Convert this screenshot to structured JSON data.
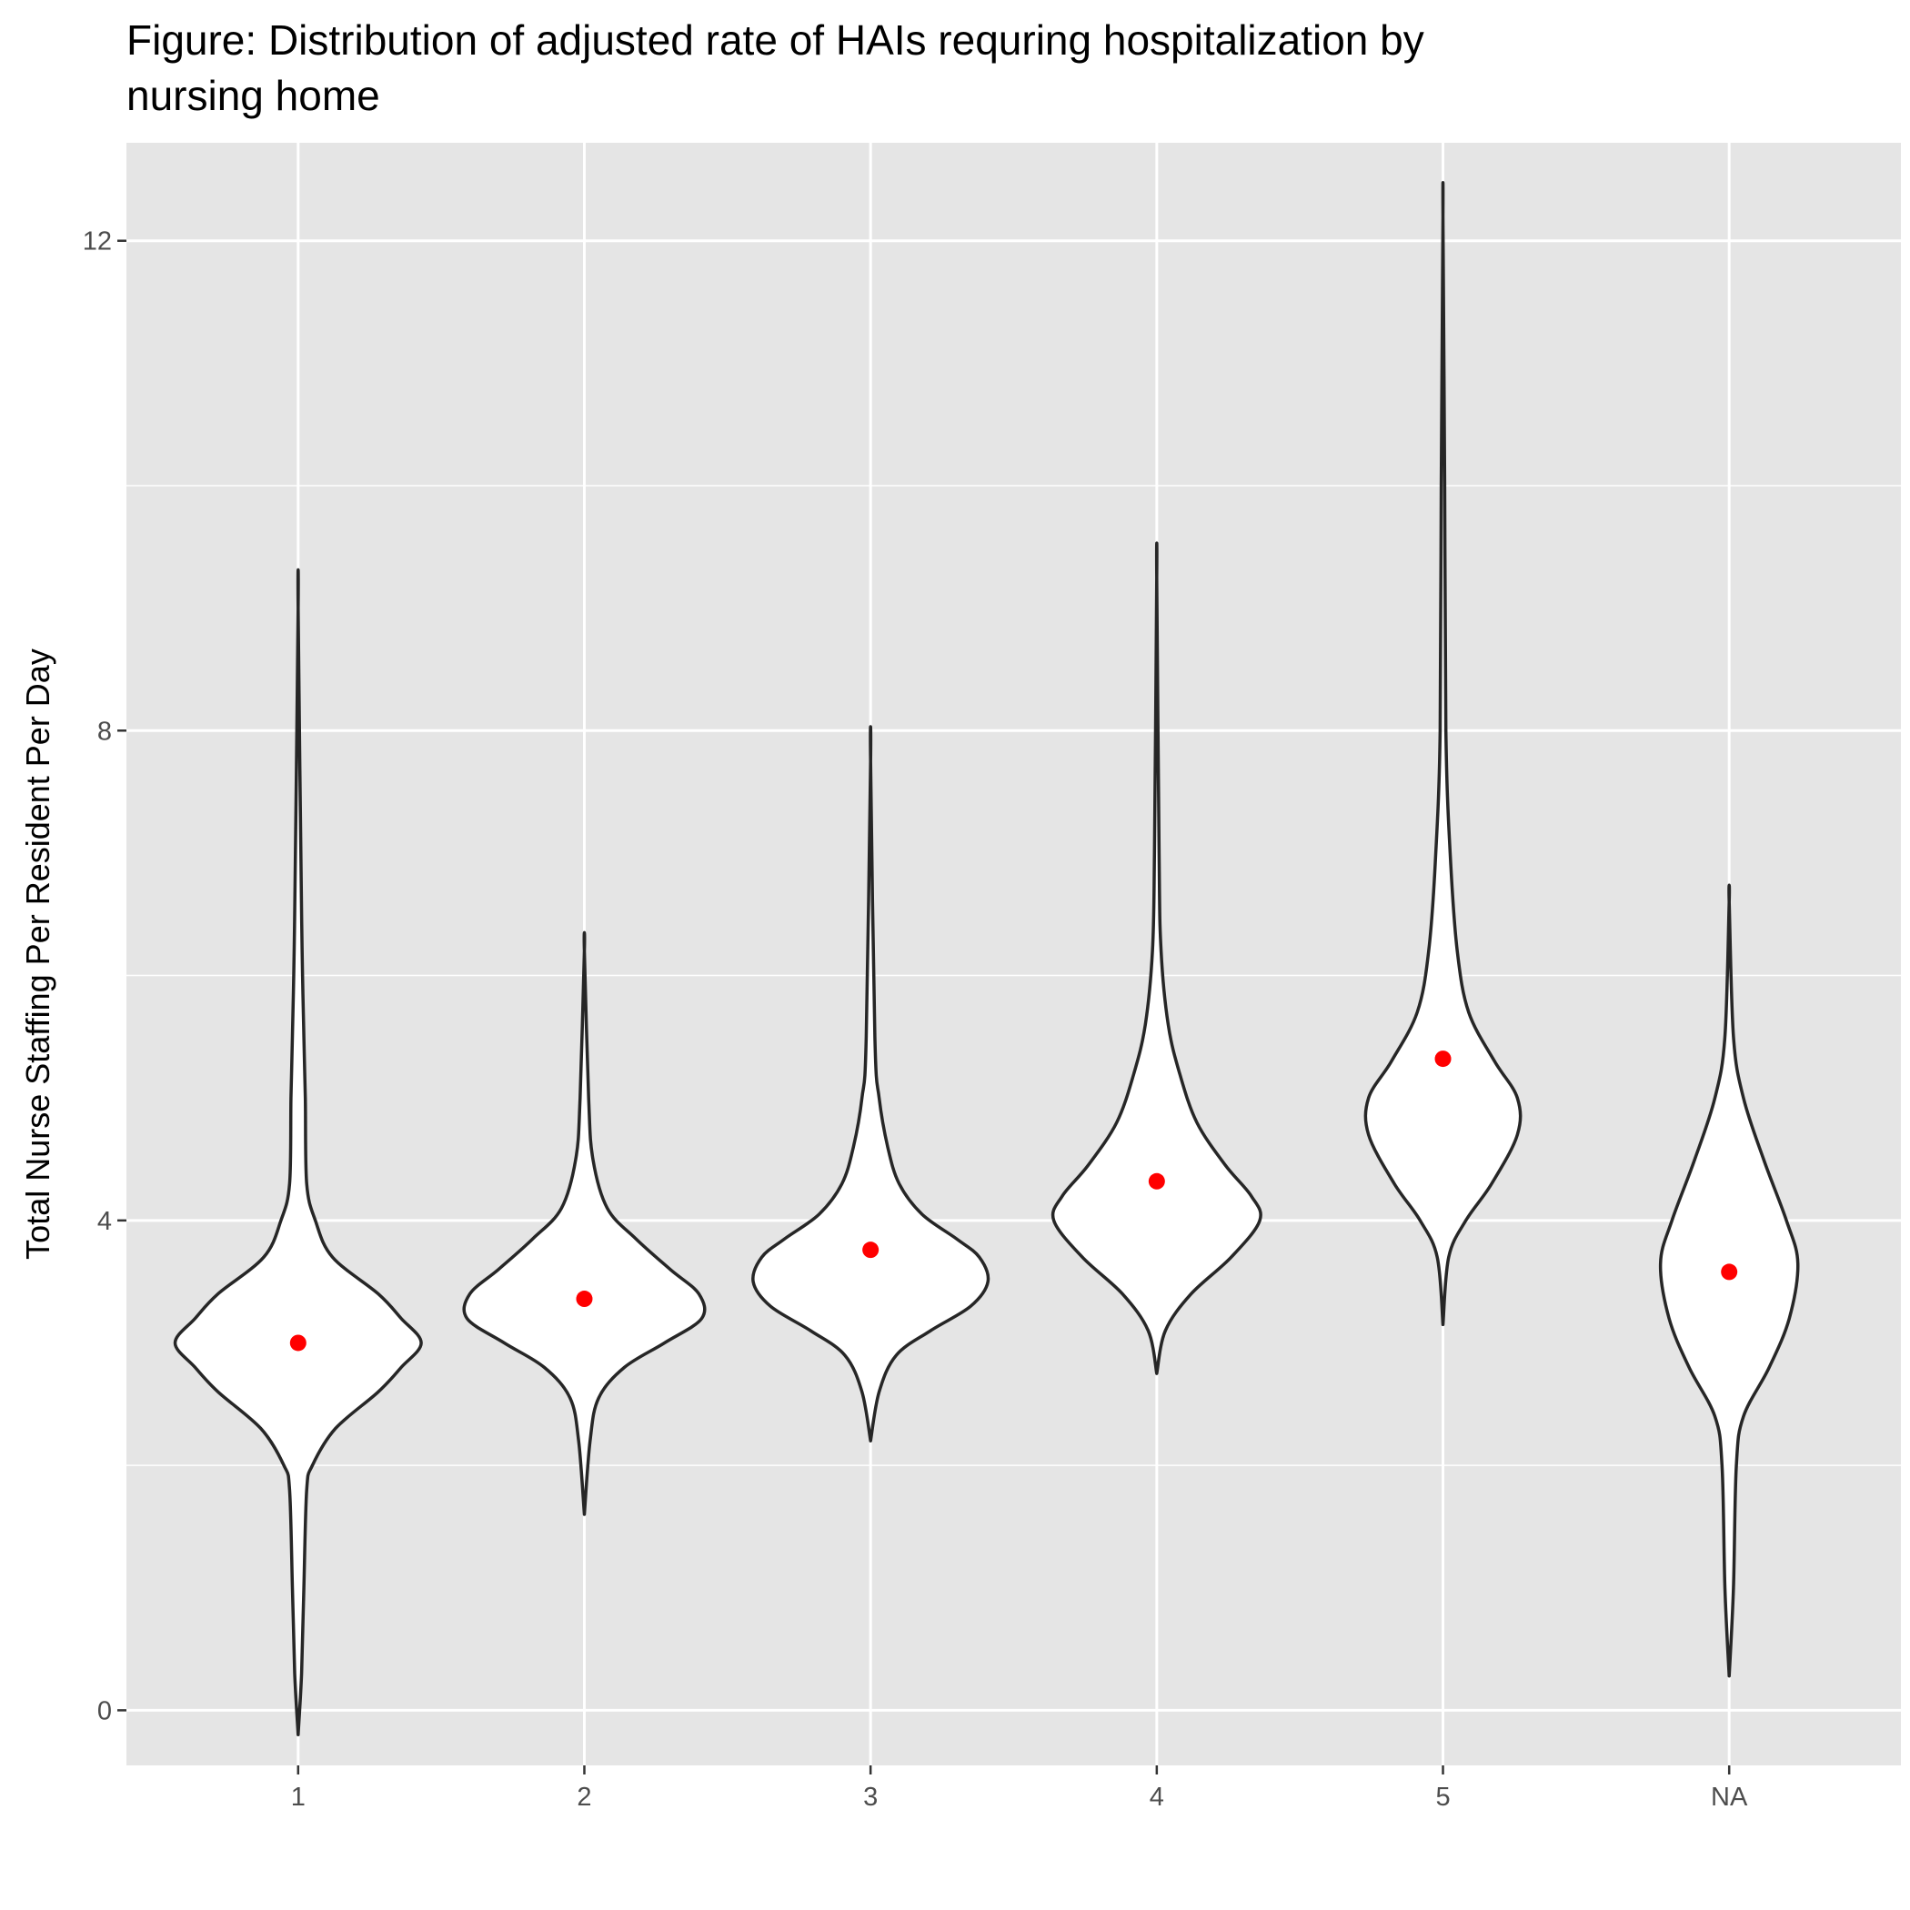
{
  "chart_data": {
    "type": "violin",
    "title_lines": [
      "Figure: Distribution of adjusted rate of HAIs requring hospitalization by",
      "nursing home"
    ],
    "xlabel": "",
    "ylabel": "Total Nurse Staffing Per Resident Per Day",
    "ylim": [
      -0.45,
      12.8
    ],
    "y_ticks": [
      0,
      4,
      8,
      12
    ],
    "y_minor_ticks": [
      2,
      6,
      10
    ],
    "grid": true,
    "categories": [
      "1",
      "2",
      "3",
      "4",
      "5",
      "NA"
    ],
    "mean_color": "#ff0000",
    "panel_color": "#e5e5e5",
    "violins": [
      {
        "category": "1",
        "min": -0.2,
        "max": 9.0,
        "mean": 3.0,
        "profile": [
          [
            -0.2,
            0.0
          ],
          [
            0.3,
            0.012
          ],
          [
            1.0,
            0.02
          ],
          [
            1.8,
            0.03
          ],
          [
            2.0,
            0.05
          ],
          [
            2.3,
            0.13
          ],
          [
            2.6,
            0.28
          ],
          [
            2.8,
            0.36
          ],
          [
            3.0,
            0.43
          ],
          [
            3.2,
            0.36
          ],
          [
            3.4,
            0.28
          ],
          [
            3.7,
            0.12
          ],
          [
            4.0,
            0.06
          ],
          [
            4.3,
            0.03
          ],
          [
            5.0,
            0.025
          ],
          [
            5.5,
            0.02
          ],
          [
            6.5,
            0.012
          ],
          [
            9.0,
            0.0
          ]
        ]
      },
      {
        "category": "2",
        "min": 1.6,
        "max": 6.2,
        "mean": 3.36,
        "profile": [
          [
            1.6,
            0.0
          ],
          [
            2.2,
            0.02
          ],
          [
            2.55,
            0.05
          ],
          [
            2.8,
            0.14
          ],
          [
            3.0,
            0.28
          ],
          [
            3.2,
            0.41
          ],
          [
            3.4,
            0.4
          ],
          [
            3.6,
            0.3
          ],
          [
            3.85,
            0.18
          ],
          [
            4.1,
            0.08
          ],
          [
            4.5,
            0.03
          ],
          [
            5.0,
            0.015
          ],
          [
            6.2,
            0.0
          ]
        ]
      },
      {
        "category": "3",
        "min": 2.2,
        "max": 7.75,
        "mean": 3.76,
        "profile": [
          [
            2.2,
            0.0
          ],
          [
            2.6,
            0.03
          ],
          [
            2.9,
            0.09
          ],
          [
            3.1,
            0.21
          ],
          [
            3.3,
            0.35
          ],
          [
            3.5,
            0.41
          ],
          [
            3.7,
            0.38
          ],
          [
            3.85,
            0.3
          ],
          [
            4.05,
            0.18
          ],
          [
            4.3,
            0.1
          ],
          [
            4.6,
            0.06
          ],
          [
            5.0,
            0.03
          ],
          [
            5.5,
            0.015
          ],
          [
            7.75,
            0.0
          ]
        ]
      },
      {
        "category": "4",
        "min": 2.75,
        "max": 9.25,
        "mean": 4.32,
        "profile": [
          [
            2.75,
            0.0
          ],
          [
            3.1,
            0.03
          ],
          [
            3.4,
            0.12
          ],
          [
            3.7,
            0.26
          ],
          [
            4.0,
            0.36
          ],
          [
            4.2,
            0.33
          ],
          [
            4.45,
            0.24
          ],
          [
            4.8,
            0.14
          ],
          [
            5.2,
            0.08
          ],
          [
            5.6,
            0.04
          ],
          [
            6.2,
            0.015
          ],
          [
            7.0,
            0.008
          ],
          [
            9.25,
            0.0
          ]
        ]
      },
      {
        "category": "5",
        "min": 3.15,
        "max": 12.2,
        "mean": 5.32,
        "profile": [
          [
            3.15,
            0.0
          ],
          [
            3.7,
            0.02
          ],
          [
            4.0,
            0.08
          ],
          [
            4.3,
            0.17
          ],
          [
            4.7,
            0.26
          ],
          [
            5.0,
            0.26
          ],
          [
            5.3,
            0.18
          ],
          [
            5.7,
            0.09
          ],
          [
            6.2,
            0.05
          ],
          [
            7.0,
            0.025
          ],
          [
            8.0,
            0.01
          ],
          [
            10.0,
            0.006
          ],
          [
            12.2,
            0.0
          ]
        ]
      },
      {
        "category": "NA",
        "min": 0.28,
        "max": 6.6,
        "mean": 3.58,
        "profile": [
          [
            0.28,
            0.0
          ],
          [
            1.0,
            0.015
          ],
          [
            2.0,
            0.025
          ],
          [
            2.4,
            0.05
          ],
          [
            2.8,
            0.14
          ],
          [
            3.2,
            0.21
          ],
          [
            3.65,
            0.24
          ],
          [
            4.0,
            0.2
          ],
          [
            4.5,
            0.12
          ],
          [
            5.0,
            0.05
          ],
          [
            5.5,
            0.015
          ],
          [
            6.6,
            0.0
          ]
        ]
      }
    ]
  }
}
